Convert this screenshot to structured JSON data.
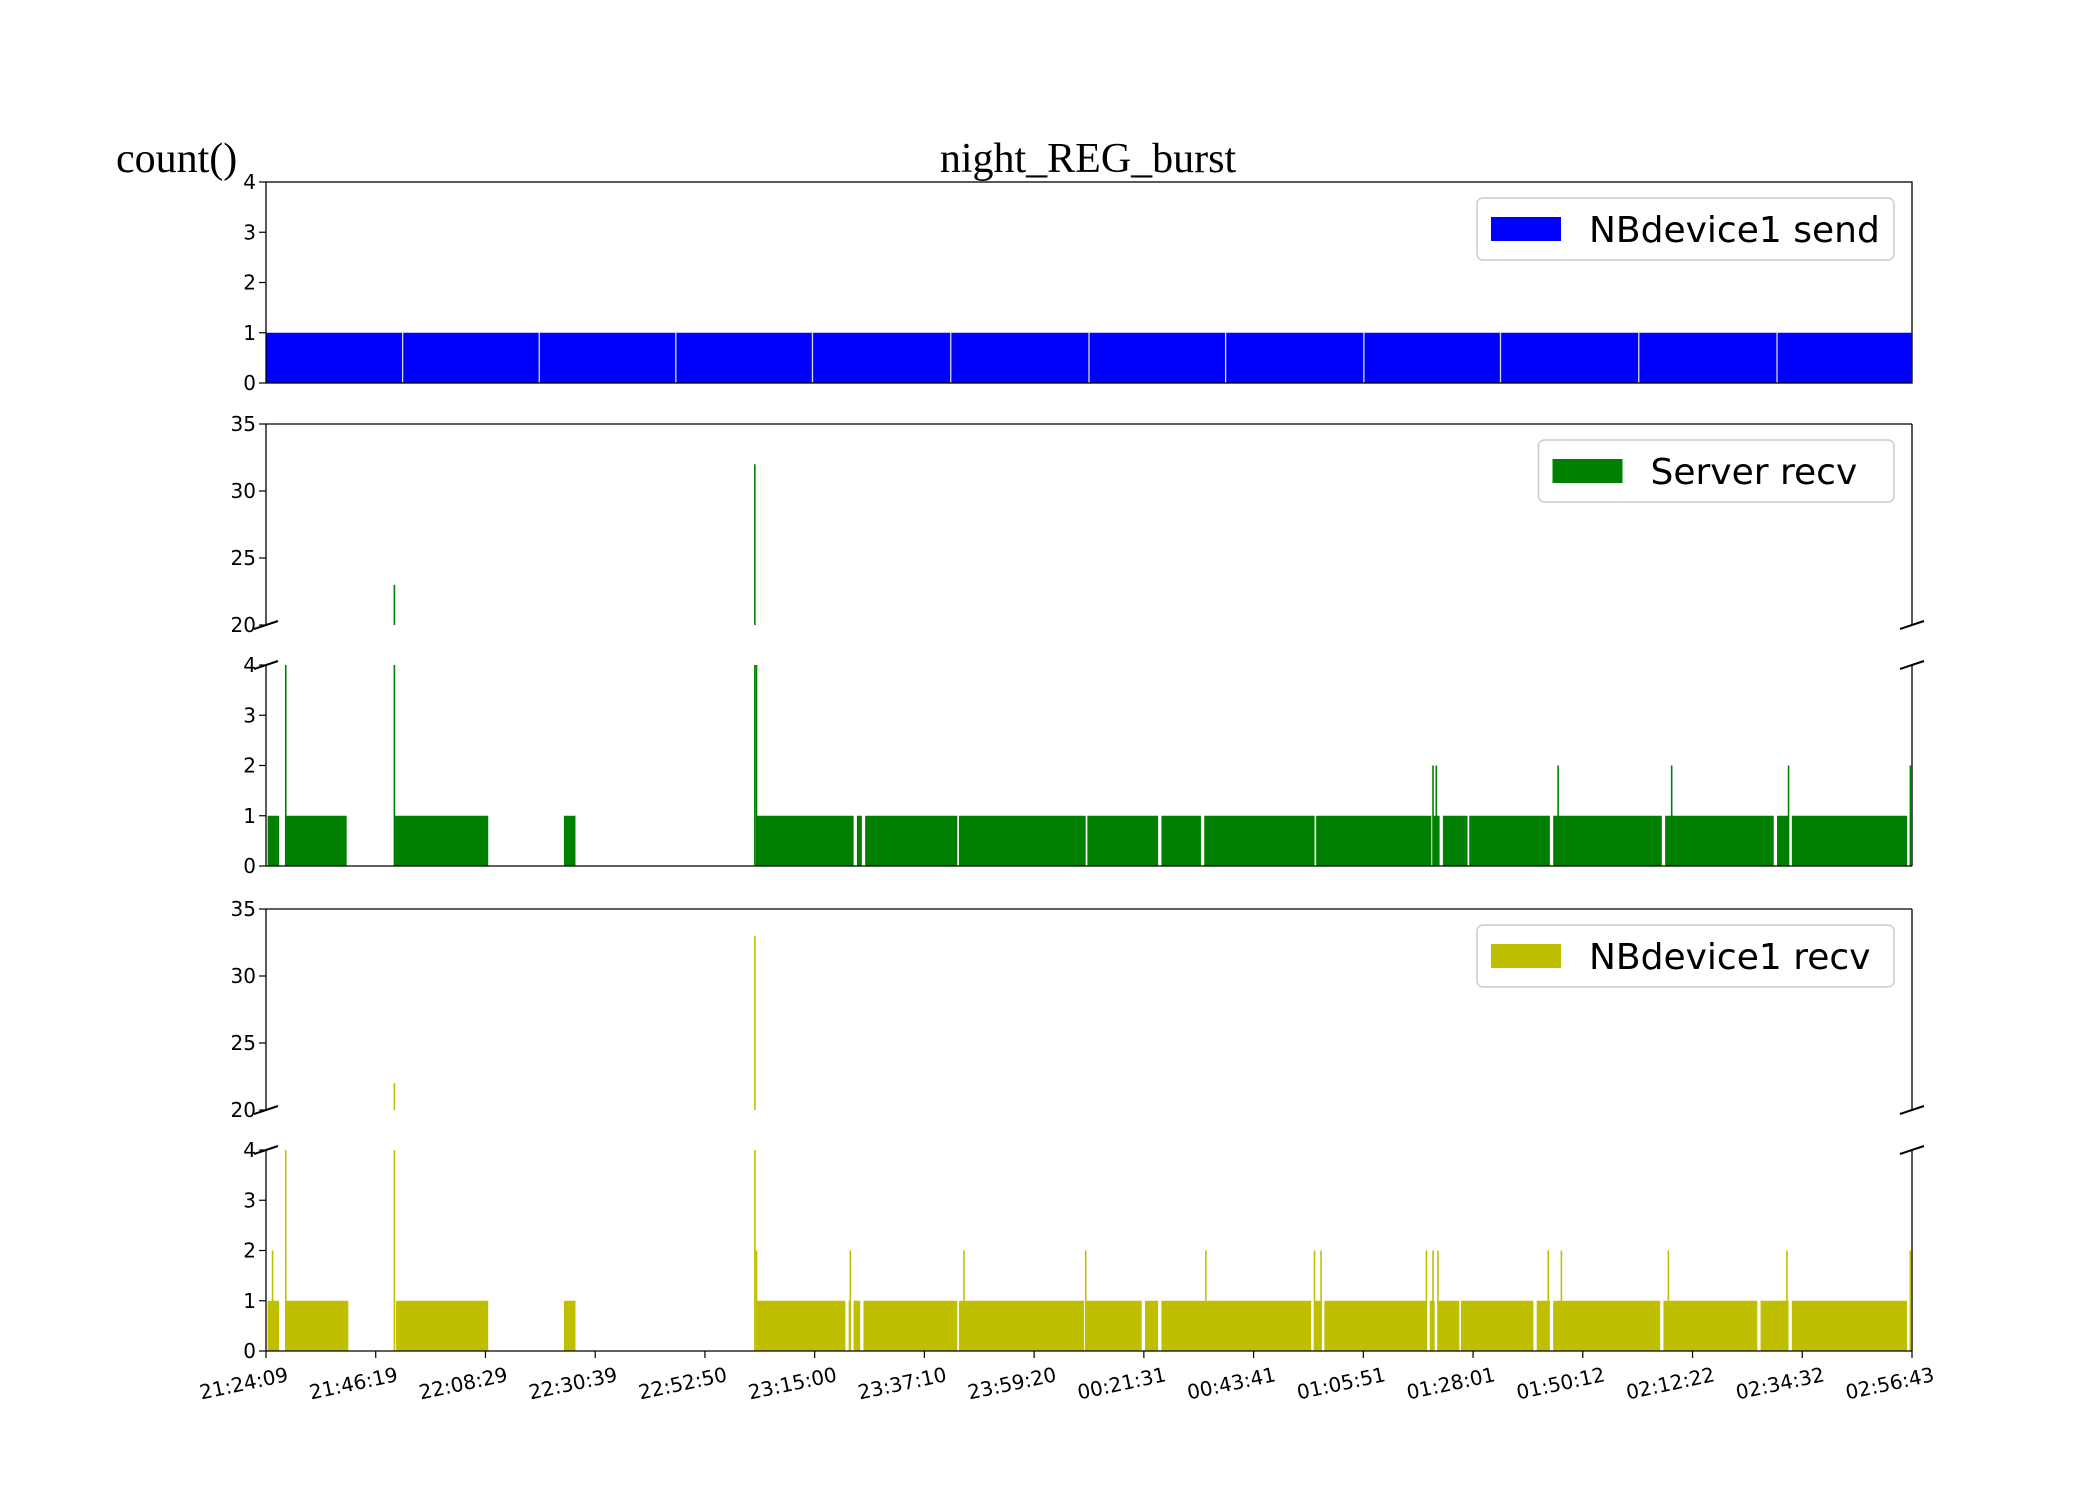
{
  "figure": {
    "title": "night_REG_burst",
    "ylabel": "count()"
  },
  "chart_data": {
    "type": "bar",
    "x_ticks": [
      "21:24:09",
      "21:46:19",
      "22:08:29",
      "22:30:39",
      "22:52:50",
      "23:15:00",
      "23:37:10",
      "23:59:20",
      "00:21:31",
      "00:43:41",
      "01:05:51",
      "01:28:01",
      "01:50:12",
      "02:12:22",
      "02:34:32",
      "02:56:43"
    ],
    "x_range": [
      "21:24:09",
      "02:56:43"
    ],
    "series": [
      {
        "name": "NBdevice1 send",
        "color": "#0000ff",
        "ylim": [
          0,
          4
        ],
        "yticks": [
          "0",
          "1",
          "2",
          "3",
          "4"
        ],
        "segments": [
          [
            0.0,
            1.0,
            1
          ]
        ],
        "gaps": [
          0.083,
          0.166,
          0.249,
          0.332,
          0.416,
          0.5,
          0.583,
          0.667,
          0.75,
          0.834,
          0.918,
          1.0
        ],
        "spikes": []
      },
      {
        "name": "Server recv",
        "color": "#008000",
        "ylim_upper": [
          20,
          35
        ],
        "yticks_upper": [
          "20",
          "25",
          "30",
          "35"
        ],
        "ylim_lower": [
          0,
          4
        ],
        "yticks_lower": [
          "0",
          "1",
          "2",
          "3",
          "4"
        ],
        "segments": [
          [
            0.001,
            0.008,
            1
          ],
          [
            0.012,
            0.049,
            1
          ],
          [
            0.078,
            0.135,
            1
          ],
          [
            0.181,
            0.188,
            1
          ],
          [
            0.298,
            0.357,
            1
          ],
          [
            0.359,
            0.362,
            1
          ],
          [
            0.364,
            0.42,
            1
          ],
          [
            0.421,
            0.498,
            1
          ],
          [
            0.499,
            0.542,
            1
          ],
          [
            0.544,
            0.568,
            1
          ],
          [
            0.57,
            0.637,
            1
          ],
          [
            0.638,
            0.708,
            1
          ],
          [
            0.709,
            0.713,
            1
          ],
          [
            0.715,
            0.73,
            1
          ],
          [
            0.731,
            0.78,
            1
          ],
          [
            0.782,
            0.848,
            1
          ],
          [
            0.85,
            0.916,
            1
          ],
          [
            0.918,
            0.925,
            1
          ],
          [
            0.927,
            0.997,
            1
          ]
        ],
        "spikes": [
          [
            0.012,
            4
          ],
          [
            0.078,
            23
          ],
          [
            0.297,
            32
          ],
          [
            0.298,
            4
          ],
          [
            0.709,
            2
          ],
          [
            0.711,
            2
          ],
          [
            0.785,
            2
          ],
          [
            0.854,
            2
          ],
          [
            0.925,
            2
          ],
          [
            0.999,
            2
          ]
        ]
      },
      {
        "name": "NBdevice1 recv",
        "color": "#bfbf00",
        "ylim_upper": [
          20,
          35
        ],
        "yticks_upper": [
          "20",
          "25",
          "30",
          "35"
        ],
        "ylim_lower": [
          0,
          4
        ],
        "yticks_lower": [
          "0",
          "1",
          "2",
          "3",
          "4"
        ],
        "segments": [
          [
            0.001,
            0.008,
            1
          ],
          [
            0.012,
            0.05,
            1
          ],
          [
            0.079,
            0.135,
            1
          ],
          [
            0.181,
            0.188,
            1
          ],
          [
            0.298,
            0.352,
            1
          ],
          [
            0.354,
            0.355,
            1
          ],
          [
            0.357,
            0.361,
            1
          ],
          [
            0.363,
            0.42,
            1
          ],
          [
            0.421,
            0.497,
            1
          ],
          [
            0.498,
            0.532,
            1
          ],
          [
            0.534,
            0.542,
            1
          ],
          [
            0.544,
            0.635,
            1
          ],
          [
            0.637,
            0.641,
            1
          ],
          [
            0.643,
            0.705,
            1
          ],
          [
            0.707,
            0.71,
            1
          ],
          [
            0.712,
            0.725,
            1
          ],
          [
            0.726,
            0.77,
            1
          ],
          [
            0.772,
            0.78,
            1
          ],
          [
            0.782,
            0.847,
            1
          ],
          [
            0.849,
            0.906,
            1
          ],
          [
            0.908,
            0.925,
            1
          ],
          [
            0.927,
            0.997,
            1
          ]
        ],
        "spikes": [
          [
            0.004,
            2
          ],
          [
            0.012,
            4
          ],
          [
            0.078,
            22
          ],
          [
            0.297,
            33
          ],
          [
            0.298,
            2
          ],
          [
            0.355,
            2
          ],
          [
            0.424,
            2
          ],
          [
            0.498,
            2
          ],
          [
            0.571,
            2
          ],
          [
            0.637,
            2
          ],
          [
            0.641,
            2
          ],
          [
            0.705,
            2
          ],
          [
            0.709,
            2
          ],
          [
            0.712,
            2
          ],
          [
            0.779,
            2
          ],
          [
            0.787,
            2
          ],
          [
            0.852,
            2
          ],
          [
            0.924,
            2
          ],
          [
            0.999,
            2
          ]
        ]
      }
    ]
  }
}
